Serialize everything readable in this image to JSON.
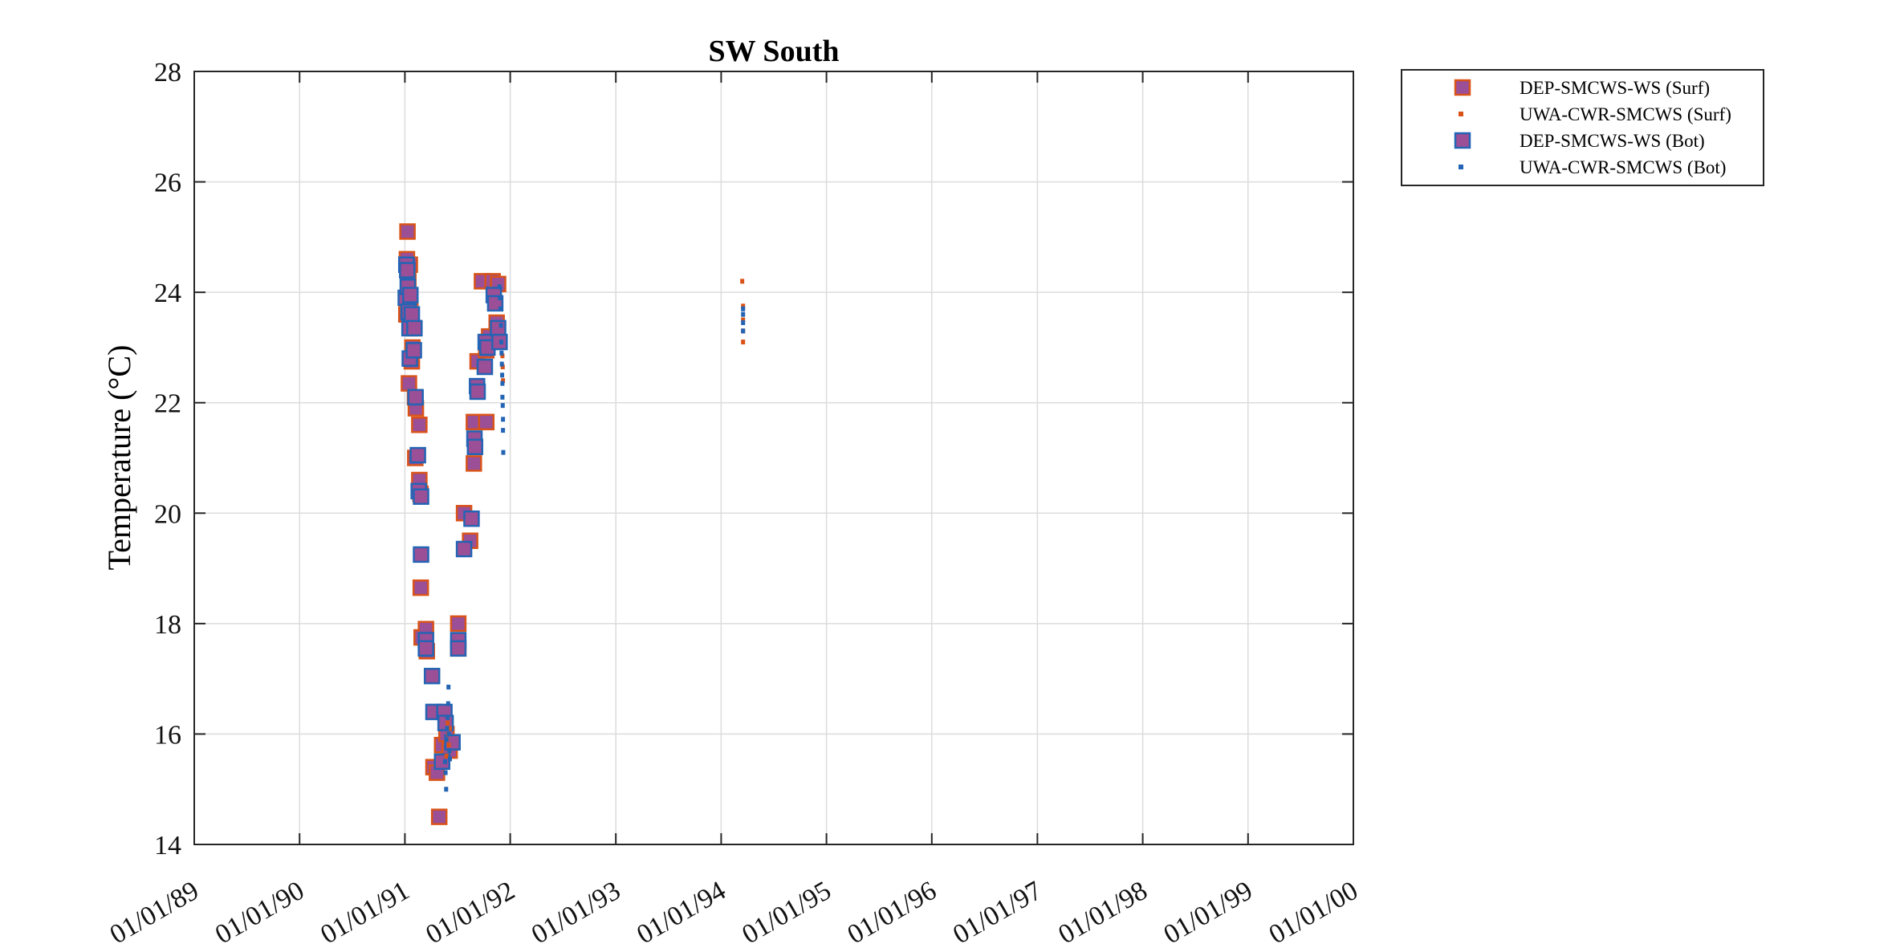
{
  "chart_data": {
    "type": "scatter",
    "title": "SW South",
    "xlabel": "",
    "ylabel": "Temperature (°C)",
    "ylim": [
      14,
      28
    ],
    "yticks": [
      14,
      16,
      18,
      20,
      22,
      24,
      26,
      28
    ],
    "xlim": [
      "1989-01-01",
      "2000-01-01"
    ],
    "xtick_labels": [
      "01/01/89",
      "01/01/90",
      "01/01/91",
      "01/01/92",
      "01/01/93",
      "01/01/94",
      "01/01/95",
      "01/01/96",
      "01/01/97",
      "01/01/98",
      "01/01/99",
      "01/01/00"
    ],
    "grid": true,
    "legend_position": "outside top-right",
    "series": [
      {
        "name": "DEP-SMCWS-WS (Surf)",
        "marker": "square",
        "face_color": "#9b4f96",
        "edge_color": "#d95319",
        "points": [
          [
            "1991-01-06",
            23.6
          ],
          [
            "1991-01-08",
            24.6
          ],
          [
            "1991-01-10",
            25.1
          ],
          [
            "1991-01-13",
            24.2
          ],
          [
            "1991-01-15",
            22.35
          ],
          [
            "1991-01-18",
            24.5
          ],
          [
            "1991-01-20",
            23.9
          ],
          [
            "1991-01-22",
            23.6
          ],
          [
            "1991-01-25",
            22.75
          ],
          [
            "1991-01-27",
            23.0
          ],
          [
            "1991-02-01",
            23.35
          ],
          [
            "1991-02-05",
            22.1
          ],
          [
            "1991-02-08",
            21.9
          ],
          [
            "1991-02-06",
            21.0
          ],
          [
            "1991-02-20",
            21.6
          ],
          [
            "1991-02-20",
            20.6
          ],
          [
            "1991-02-24",
            20.35
          ],
          [
            "1991-02-25",
            18.65
          ],
          [
            "1991-02-28",
            17.75
          ],
          [
            "1991-03-15",
            17.9
          ],
          [
            "1991-03-18",
            17.5
          ],
          [
            "1991-04-10",
            15.4
          ],
          [
            "1991-04-22",
            15.3
          ],
          [
            "1991-04-30",
            14.5
          ],
          [
            "1991-05-10",
            15.8
          ],
          [
            "1991-05-25",
            16.0
          ],
          [
            "1991-06-05",
            15.7
          ],
          [
            "1991-07-05",
            18.0
          ],
          [
            "1991-07-05",
            17.55
          ],
          [
            "1991-07-25",
            20.0
          ],
          [
            "1991-08-15",
            19.5
          ],
          [
            "1991-08-28",
            20.9
          ],
          [
            "1991-08-28",
            21.65
          ],
          [
            "1991-09-10",
            22.75
          ],
          [
            "1991-09-25",
            24.2
          ],
          [
            "1991-10-10",
            22.95
          ],
          [
            "1991-10-10",
            21.65
          ],
          [
            "1991-10-20",
            23.2
          ],
          [
            "1991-11-01",
            24.2
          ],
          [
            "1991-11-15",
            23.45
          ],
          [
            "1991-11-20",
            24.15
          ]
        ]
      },
      {
        "name": "UWA-CWR-SMCWS (Surf)",
        "marker": "point",
        "color": "#d95319",
        "points": [
          [
            "1991-05-25",
            15.6
          ],
          [
            "1991-05-27",
            15.9
          ],
          [
            "1991-05-29",
            16.2
          ],
          [
            "1991-05-31",
            16.0
          ],
          [
            "1991-06-02",
            15.8
          ],
          [
            "1991-06-04",
            15.7
          ],
          [
            "1991-06-06",
            16.1
          ],
          [
            "1991-12-05",
            22.85
          ],
          [
            "1991-12-06",
            22.65
          ],
          [
            "1991-12-07",
            22.4
          ],
          [
            "1994-03-15",
            24.2
          ],
          [
            "1994-03-18",
            23.75
          ],
          [
            "1994-03-18",
            23.5
          ],
          [
            "1994-03-18",
            23.3
          ],
          [
            "1994-03-18",
            23.1
          ]
        ]
      },
      {
        "name": "DEP-SMCWS-WS (Bot)",
        "marker": "square",
        "face_color": "#9b4f96",
        "edge_color": "#2464b4",
        "points": [
          [
            "1991-01-04",
            23.9
          ],
          [
            "1991-01-06",
            24.5
          ],
          [
            "1991-01-09",
            24.4
          ],
          [
            "1991-01-11",
            24.1
          ],
          [
            "1991-01-14",
            23.65
          ],
          [
            "1991-01-17",
            23.35
          ],
          [
            "1991-01-20",
            23.95
          ],
          [
            "1991-01-18",
            22.8
          ],
          [
            "1991-01-25",
            23.6
          ],
          [
            "1991-02-01",
            22.95
          ],
          [
            "1991-02-03",
            23.35
          ],
          [
            "1991-02-07",
            22.1
          ],
          [
            "1991-02-15",
            21.05
          ],
          [
            "1991-02-18",
            20.4
          ],
          [
            "1991-02-26",
            20.3
          ],
          [
            "1991-02-26",
            19.25
          ],
          [
            "1991-03-15",
            17.7
          ],
          [
            "1991-03-15",
            17.55
          ],
          [
            "1991-04-05",
            17.05
          ],
          [
            "1991-04-10",
            16.4
          ],
          [
            "1991-05-10",
            15.5
          ],
          [
            "1991-05-18",
            16.4
          ],
          [
            "1991-05-22",
            16.2
          ],
          [
            "1991-06-15",
            15.85
          ],
          [
            "1991-07-05",
            17.7
          ],
          [
            "1991-07-05",
            17.55
          ],
          [
            "1991-07-25",
            19.35
          ],
          [
            "1991-08-20",
            19.9
          ],
          [
            "1991-08-30",
            21.35
          ],
          [
            "1991-09-01",
            21.2
          ],
          [
            "1991-09-08",
            22.3
          ],
          [
            "1991-09-10",
            22.2
          ],
          [
            "1991-10-05",
            22.65
          ],
          [
            "1991-10-08",
            23.1
          ],
          [
            "1991-10-14",
            23.0
          ],
          [
            "1991-11-05",
            23.95
          ],
          [
            "1991-11-10",
            23.8
          ],
          [
            "1991-11-20",
            23.35
          ],
          [
            "1991-11-25",
            23.1
          ]
        ]
      },
      {
        "name": "UWA-CWR-SMCWS (Bot)",
        "marker": "point",
        "color": "#2464b4",
        "points": [
          [
            "1991-05-20",
            15.5
          ],
          [
            "1991-05-22",
            15.3
          ],
          [
            "1991-05-24",
            15.0
          ],
          [
            "1991-05-25",
            15.9
          ],
          [
            "1991-05-27",
            16.1
          ],
          [
            "1991-05-29",
            16.3
          ],
          [
            "1991-05-31",
            16.55
          ],
          [
            "1991-06-01",
            16.85
          ],
          [
            "1991-06-02",
            16.0
          ],
          [
            "1991-06-04",
            15.7
          ],
          [
            "1991-06-06",
            15.55
          ],
          [
            "1991-11-25",
            24.1
          ],
          [
            "1991-11-26",
            23.9
          ],
          [
            "1991-11-28",
            23.7
          ],
          [
            "1991-11-30",
            23.4
          ],
          [
            "1991-12-01",
            23.1
          ],
          [
            "1991-12-02",
            22.9
          ],
          [
            "1991-12-03",
            22.7
          ],
          [
            "1991-12-04",
            22.5
          ],
          [
            "1991-12-05",
            22.35
          ],
          [
            "1991-12-05",
            22.1
          ],
          [
            "1991-12-06",
            21.95
          ],
          [
            "1991-12-07",
            21.7
          ],
          [
            "1991-12-07",
            21.5
          ],
          [
            "1991-12-08",
            21.1
          ],
          [
            "1994-03-18",
            23.7
          ],
          [
            "1994-03-18",
            23.6
          ],
          [
            "1994-03-18",
            23.45
          ],
          [
            "1994-03-18",
            23.3
          ]
        ]
      }
    ]
  }
}
